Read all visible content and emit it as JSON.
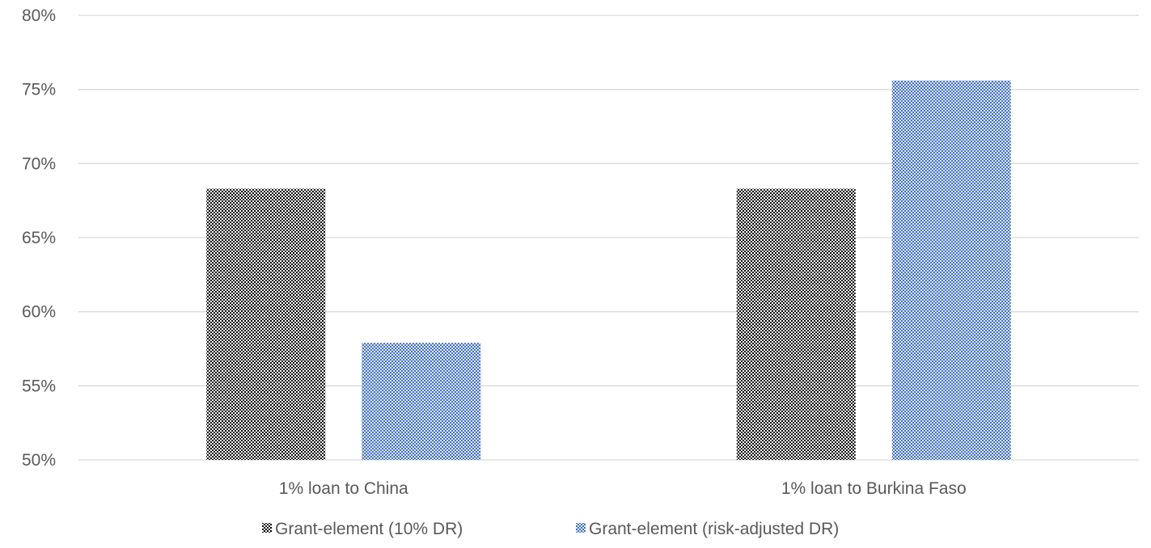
{
  "chart_data": {
    "type": "bar",
    "title": "",
    "xlabel": "",
    "ylabel": "",
    "categories": [
      "1% loan to China",
      "1% loan to Burkina Faso"
    ],
    "series": [
      {
        "name": "Grant-element (10% DR)",
        "values": [
          68.3,
          68.3
        ],
        "color": "#000000",
        "pattern": "dark-checker"
      },
      {
        "name": "Grant-element (risk-adjusted DR)",
        "values": [
          57.9,
          75.6
        ],
        "color": "#4472c4",
        "pattern": "blue-checker"
      }
    ],
    "ylim": [
      50,
      80
    ],
    "yticks": [
      50,
      55,
      60,
      65,
      70,
      75,
      80
    ],
    "ytick_labels": [
      "50%",
      "55%",
      "60%",
      "65%",
      "70%",
      "75%",
      "80%"
    ],
    "grid": true,
    "legend": "bottom-center"
  }
}
